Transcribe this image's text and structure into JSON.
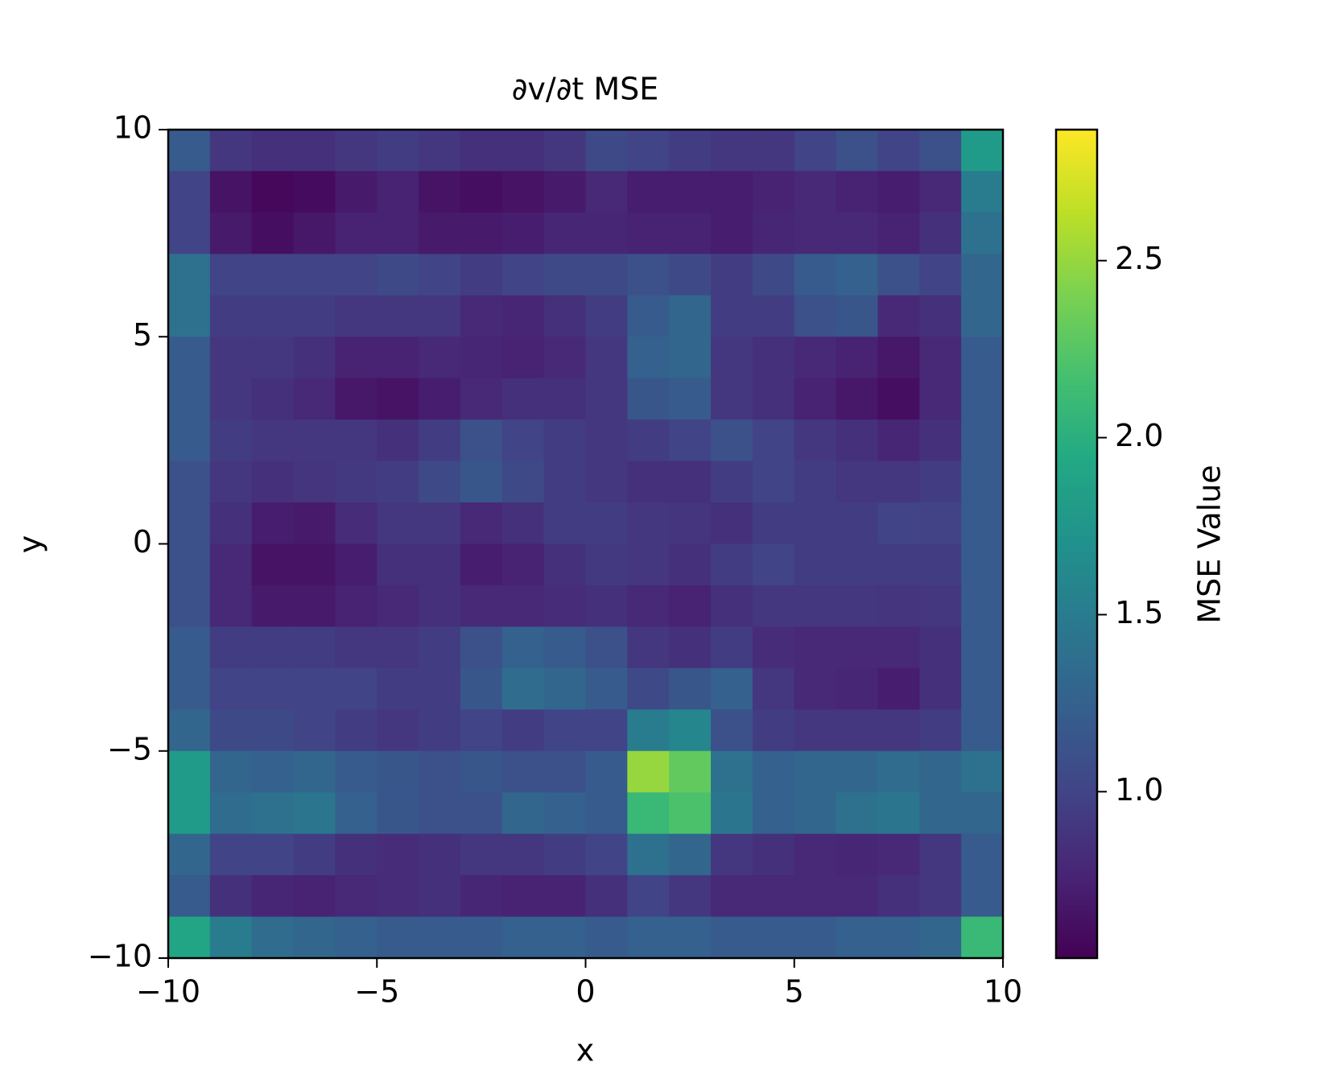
{
  "chart_data": {
    "type": "heatmap",
    "title": "∂v/∂t MSE",
    "x_label": "x",
    "y_label": "y",
    "xlim": [
      -10,
      10
    ],
    "ylim": [
      -10,
      10
    ],
    "xticks": [
      {
        "value": -10,
        "label": "−10"
      },
      {
        "value": -5,
        "label": "−5"
      },
      0,
      5,
      10
    ],
    "yticks": [
      {
        "value": -10,
        "label": "−10"
      },
      {
        "value": -5,
        "label": "−5"
      },
      0,
      5,
      10
    ],
    "colormap": "viridis",
    "colorbar": {
      "label": "MSE Value",
      "lim": [
        0.53,
        2.87
      ],
      "ticks": [
        {
          "value": 1,
          "label": "1.0"
        },
        1.5,
        {
          "value": 2,
          "label": "2.0"
        },
        2.5
      ]
    },
    "z": [
      [
        1.2,
        0.9,
        0.85,
        0.85,
        0.9,
        0.95,
        0.9,
        0.85,
        0.85,
        0.9,
        1.05,
        1.0,
        0.95,
        0.9,
        0.9,
        1.0,
        1.1,
        1.0,
        1.1,
        1.8
      ],
      [
        1.0,
        0.65,
        0.58,
        0.6,
        0.7,
        0.75,
        0.65,
        0.62,
        0.65,
        0.7,
        0.8,
        0.72,
        0.72,
        0.72,
        0.75,
        0.8,
        0.75,
        0.72,
        0.8,
        1.5
      ],
      [
        1.0,
        0.7,
        0.62,
        0.68,
        0.75,
        0.75,
        0.7,
        0.7,
        0.72,
        0.78,
        0.78,
        0.75,
        0.75,
        0.72,
        0.78,
        0.8,
        0.8,
        0.75,
        0.85,
        1.4
      ],
      [
        1.4,
        1.0,
        1.0,
        1.0,
        1.0,
        1.05,
        1.0,
        0.95,
        1.0,
        1.05,
        1.05,
        1.1,
        1.05,
        0.95,
        1.05,
        1.2,
        1.25,
        1.1,
        1.0,
        1.3
      ],
      [
        1.4,
        0.95,
        0.95,
        0.95,
        0.9,
        0.9,
        0.9,
        0.8,
        0.78,
        0.85,
        0.95,
        1.2,
        1.3,
        0.95,
        0.95,
        1.1,
        1.15,
        0.8,
        0.85,
        1.3
      ],
      [
        1.2,
        0.9,
        0.9,
        0.85,
        0.75,
        0.75,
        0.8,
        0.78,
        0.75,
        0.8,
        0.9,
        1.25,
        1.3,
        0.9,
        0.85,
        0.8,
        0.75,
        0.68,
        0.8,
        1.2
      ],
      [
        1.2,
        0.9,
        0.85,
        0.8,
        0.68,
        0.65,
        0.72,
        0.8,
        0.85,
        0.85,
        0.9,
        1.15,
        1.2,
        0.9,
        0.85,
        0.75,
        0.68,
        0.62,
        0.8,
        1.2
      ],
      [
        1.2,
        0.95,
        0.9,
        0.9,
        0.9,
        0.85,
        0.95,
        1.1,
        1.0,
        0.95,
        0.9,
        0.95,
        1.0,
        1.1,
        1.0,
        0.9,
        0.85,
        0.78,
        0.85,
        1.2
      ],
      [
        1.1,
        0.9,
        0.85,
        0.88,
        0.92,
        0.95,
        1.05,
        1.15,
        1.05,
        0.95,
        0.9,
        0.85,
        0.85,
        0.95,
        1.0,
        0.95,
        0.9,
        0.9,
        0.95,
        1.2
      ],
      [
        1.1,
        0.85,
        0.72,
        0.7,
        0.82,
        0.9,
        0.9,
        0.8,
        0.85,
        0.95,
        0.95,
        0.9,
        0.88,
        0.85,
        0.95,
        0.95,
        0.95,
        1.0,
        0.98,
        1.2
      ],
      [
        1.1,
        0.8,
        0.65,
        0.65,
        0.72,
        0.85,
        0.85,
        0.72,
        0.75,
        0.85,
        0.92,
        0.9,
        0.85,
        0.95,
        1.0,
        0.95,
        0.95,
        0.95,
        0.95,
        1.2
      ],
      [
        1.1,
        0.8,
        0.7,
        0.7,
        0.75,
        0.8,
        0.85,
        0.8,
        0.8,
        0.82,
        0.85,
        0.8,
        0.75,
        0.85,
        0.9,
        0.9,
        0.9,
        0.88,
        0.9,
        1.2
      ],
      [
        1.2,
        0.95,
        0.95,
        0.95,
        0.9,
        0.9,
        0.95,
        1.1,
        1.25,
        1.2,
        1.1,
        0.9,
        0.85,
        0.95,
        0.82,
        0.8,
        0.8,
        0.8,
        0.85,
        1.2
      ],
      [
        1.2,
        1.0,
        1.0,
        1.0,
        1.0,
        0.95,
        0.95,
        1.15,
        1.35,
        1.3,
        1.2,
        1.05,
        1.15,
        1.25,
        0.9,
        0.8,
        0.78,
        0.72,
        0.85,
        1.2
      ],
      [
        1.3,
        1.05,
        1.05,
        1.0,
        0.95,
        0.9,
        0.95,
        1.0,
        0.95,
        1.0,
        1.0,
        1.5,
        1.6,
        1.1,
        0.95,
        0.9,
        0.9,
        0.9,
        0.95,
        1.2
      ],
      [
        1.8,
        1.3,
        1.25,
        1.3,
        1.2,
        1.15,
        1.1,
        1.15,
        1.1,
        1.1,
        1.2,
        2.5,
        2.3,
        1.4,
        1.25,
        1.3,
        1.3,
        1.35,
        1.3,
        1.4
      ],
      [
        1.8,
        1.35,
        1.4,
        1.45,
        1.25,
        1.15,
        1.1,
        1.1,
        1.3,
        1.25,
        1.2,
        2.1,
        2.2,
        1.45,
        1.25,
        1.3,
        1.4,
        1.45,
        1.3,
        1.3
      ],
      [
        1.3,
        1.0,
        1.0,
        0.95,
        0.85,
        0.82,
        0.85,
        0.9,
        0.9,
        0.95,
        1.0,
        1.4,
        1.3,
        0.9,
        0.85,
        0.8,
        0.78,
        0.8,
        0.9,
        1.2
      ],
      [
        1.2,
        0.85,
        0.78,
        0.75,
        0.8,
        0.82,
        0.85,
        0.78,
        0.75,
        0.75,
        0.85,
        1.0,
        0.9,
        0.8,
        0.8,
        0.8,
        0.8,
        0.85,
        0.9,
        1.2
      ],
      [
        1.9,
        1.5,
        1.35,
        1.3,
        1.25,
        1.2,
        1.2,
        1.2,
        1.25,
        1.25,
        1.2,
        1.25,
        1.25,
        1.2,
        1.2,
        1.2,
        1.25,
        1.25,
        1.3,
        2.1
      ]
    ]
  }
}
